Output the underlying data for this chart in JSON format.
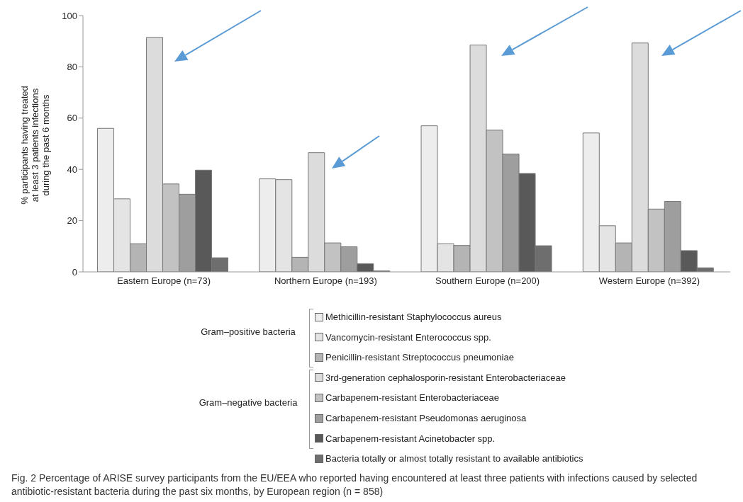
{
  "chart_data": {
    "type": "bar",
    "ylabel": "% participants having treated at least 3 patients infections during the past 6 months",
    "categories": [
      "Eastern Europe (n=73)",
      "Northern Europe (n=193)",
      "Southern Europe (n=200)",
      "Western Europe (n=392)"
    ],
    "series": [
      {
        "name": "Methicillin-resistant Staphylococcus aureus",
        "color": "#ededed",
        "values": [
          56,
          36.3,
          57,
          54.2
        ]
      },
      {
        "name": "Vancomycin-resistant Enterococcus spp.",
        "color": "#e4e4e4",
        "values": [
          28.5,
          36,
          11,
          18
        ]
      },
      {
        "name": "Penicillin-resistant Streptococcus pneumoniae",
        "color": "#b4b4b4",
        "values": [
          11,
          5.7,
          10.3,
          11.3
        ]
      },
      {
        "name": "3rd-generation cephalosporin-resistant Enterobacteriaceae",
        "color": "#dcdcdc",
        "values": [
          91.5,
          46.5,
          88.5,
          89.3
        ]
      },
      {
        "name": "Carbapenem-resistant Enterobacteriaceae",
        "color": "#c2c2c2",
        "values": [
          34.3,
          11.3,
          55.3,
          24.5
        ]
      },
      {
        "name": "Carbapenem-resistant Pseudomonas aeruginosa",
        "color": "#9e9e9e",
        "values": [
          30.3,
          9.8,
          46,
          27.5
        ]
      },
      {
        "name": "Carbapenem-resistant Acinetobacter spp.",
        "color": "#595959",
        "values": [
          39.7,
          3.2,
          38.4,
          8.3
        ]
      },
      {
        "name": "Bacteria totally or almost totally resistant to available antibiotics",
        "color": "#6e6e6e",
        "values": [
          5.5,
          0.4,
          10.2,
          1.6
        ]
      }
    ],
    "ylim": [
      0,
      100
    ],
    "yticks": [
      0,
      20,
      40,
      60,
      80,
      100
    ],
    "grid": false,
    "legend": "bottom",
    "annotations": [
      "Gram–positive bacteria",
      "Gram–negative bacteria",
      "Fig. 2 Percentage of ARISE survey participants from the EU/EEA who reported having encountered at least three patients with infections caused by selected antibiotic-resistant bacteria during the past six months, by European region (n = 858)"
    ]
  }
}
